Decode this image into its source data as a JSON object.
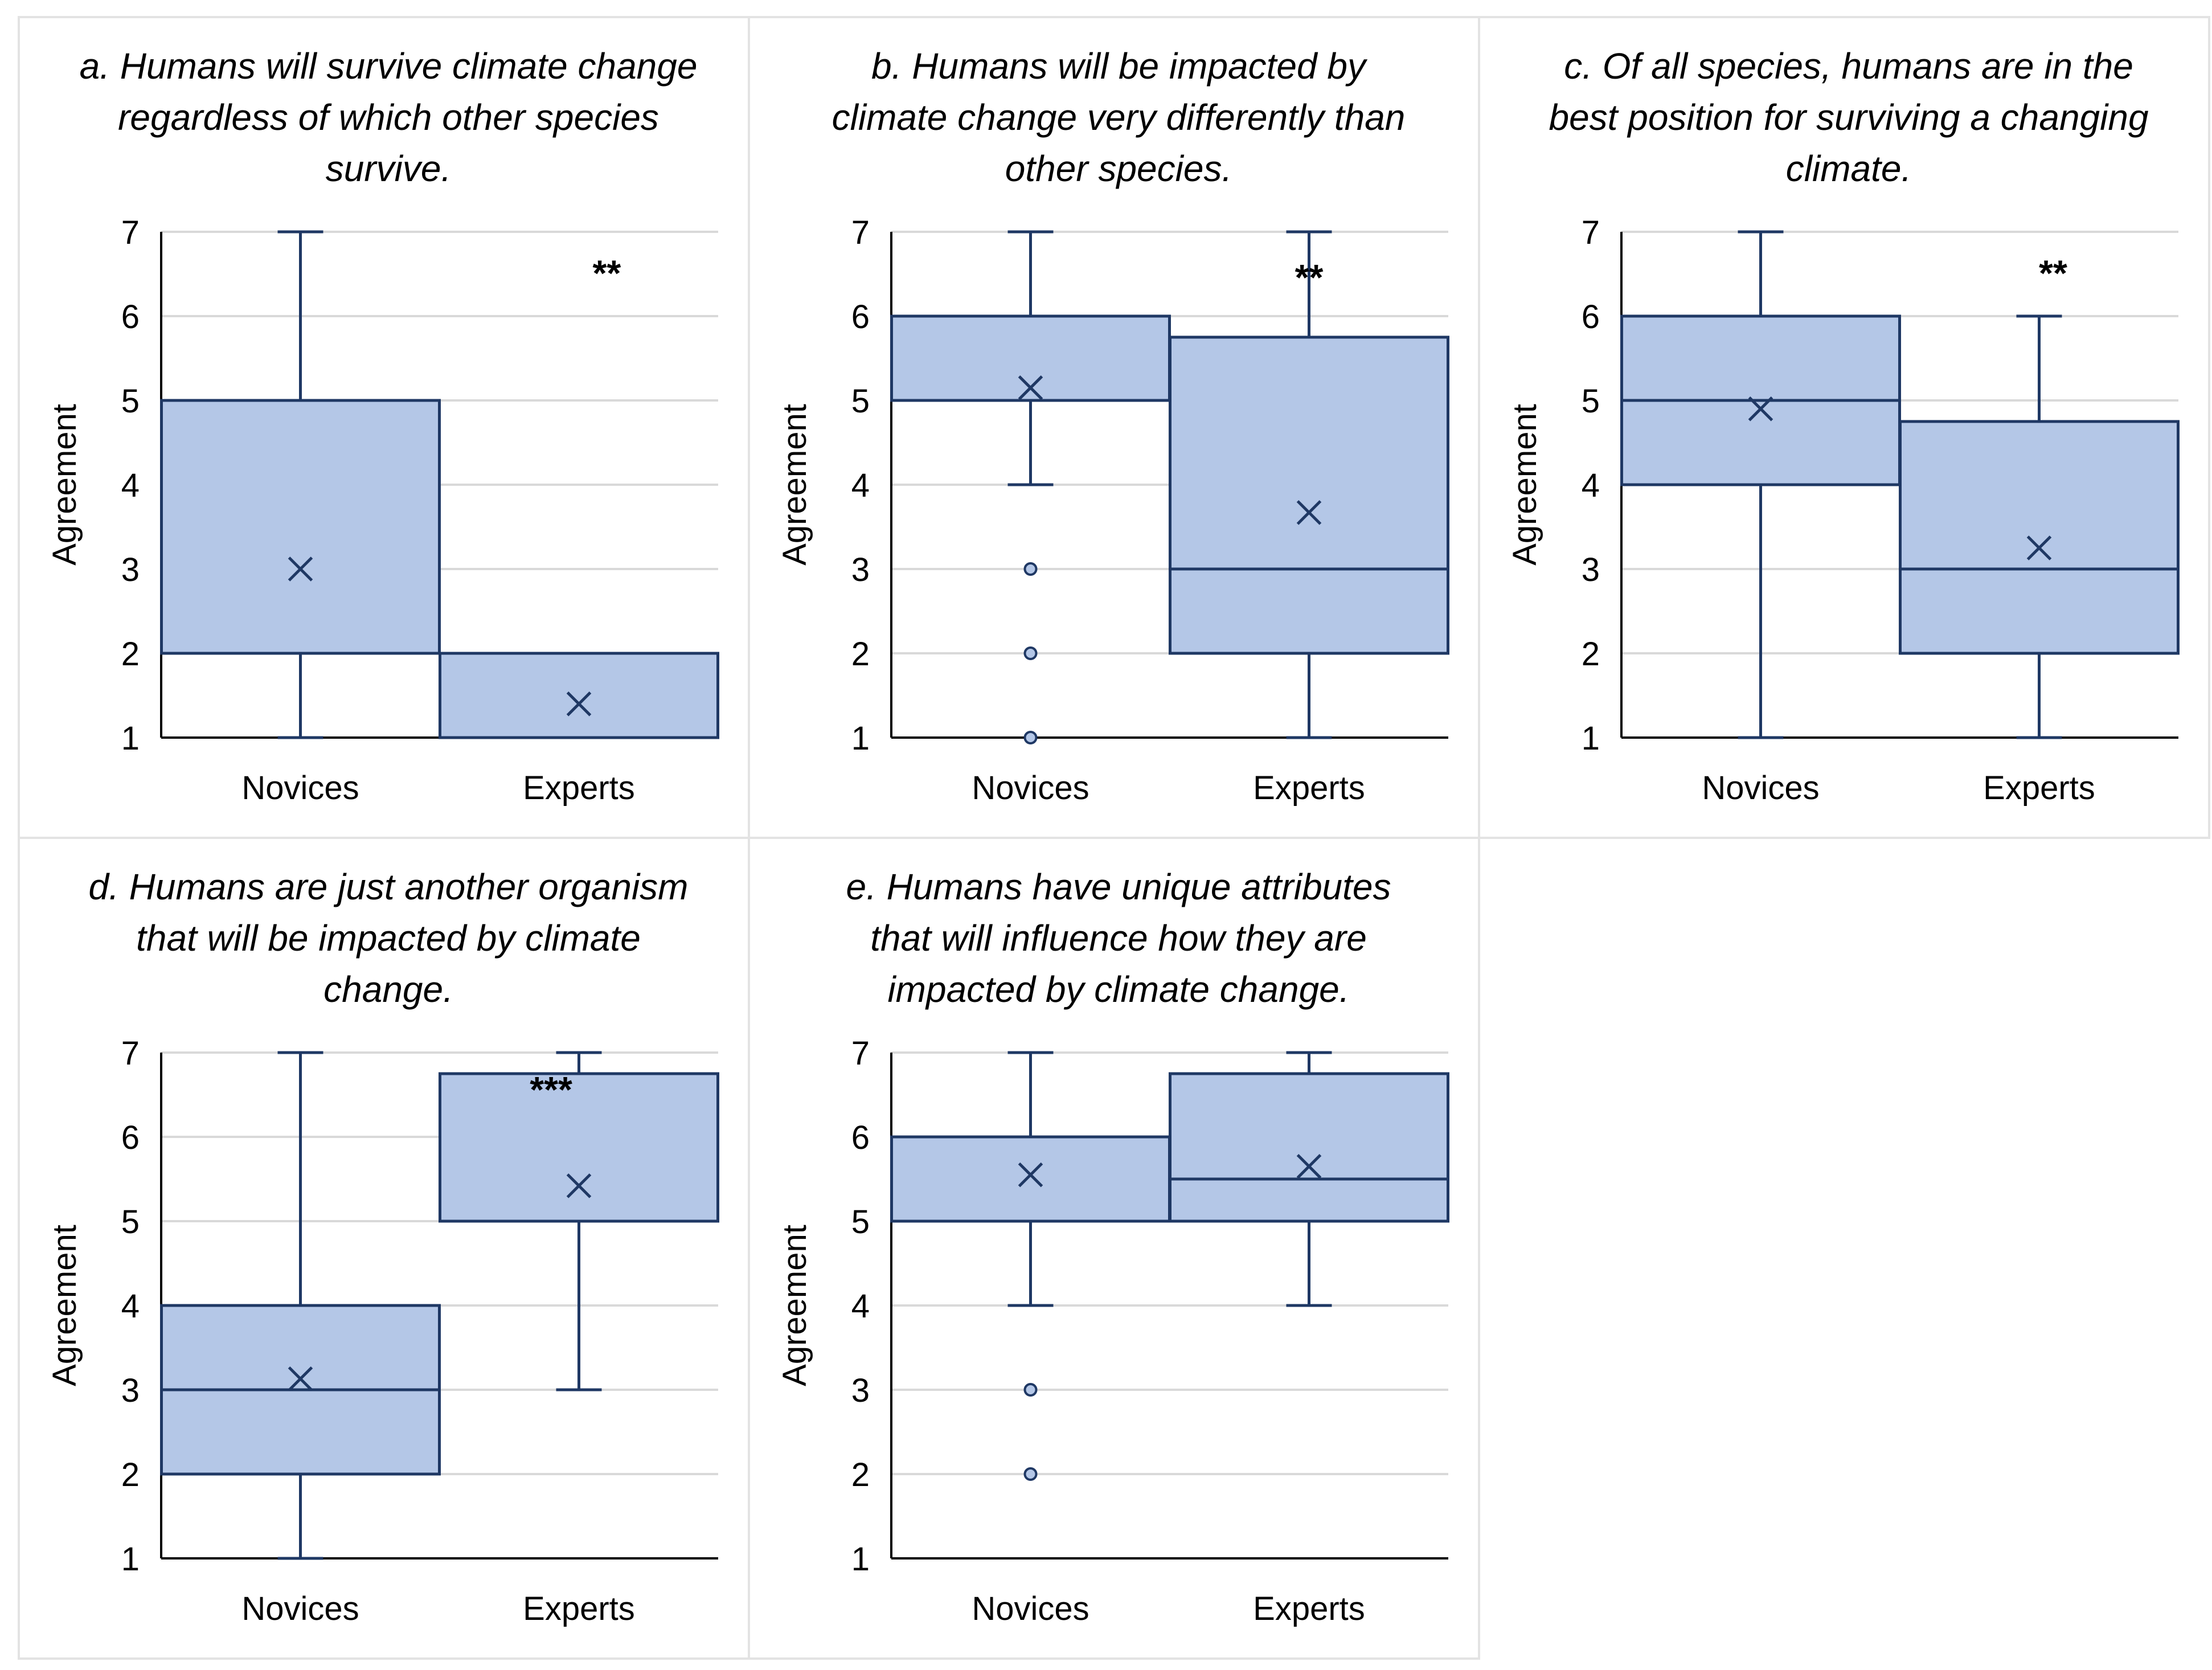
{
  "colors": {
    "box_fill": "#b4c7e7",
    "line": "#1f3864",
    "grid": "#d9d9d9",
    "panel_border": "#e3e3e3",
    "text": "#000000"
  },
  "chart_data": [
    {
      "type": "box",
      "title_lines": [
        "a. Humans will survive climate change",
        "regardless of which other species",
        "survive."
      ],
      "ylabel": "Agreement",
      "ylim": [
        1,
        7
      ],
      "yticks": [
        "1",
        "2",
        "3",
        "4",
        "5",
        "6",
        "7"
      ],
      "categories": [
        "Novices",
        "Experts"
      ],
      "significance": "**",
      "significance_position": [
        1.6,
        6.55
      ],
      "boxes": [
        {
          "group": "Novices",
          "whisker_low": 1,
          "q1": 2,
          "median": 2,
          "q3": 5,
          "whisker_high": 7,
          "mean": 3.0,
          "outliers": [],
          "show_median": false
        },
        {
          "group": "Experts",
          "whisker_low": 1,
          "q1": 1,
          "median": 1,
          "q3": 2,
          "whisker_high": 2,
          "mean": 1.4,
          "outliers": [],
          "show_median": false
        }
      ]
    },
    {
      "type": "box",
      "title_lines": [
        "b. Humans will be impacted by",
        "climate change very differently than",
        "other species."
      ],
      "ylabel": "Agreement",
      "ylim": [
        1,
        7
      ],
      "yticks": [
        "1",
        "2",
        "3",
        "4",
        "5",
        "6",
        "7"
      ],
      "categories": [
        "Novices",
        "Experts"
      ],
      "significance": "**",
      "significance_position": [
        1.5,
        6.5
      ],
      "boxes": [
        {
          "group": "Novices",
          "whisker_low": 4,
          "q1": 5,
          "median": 5,
          "q3": 6,
          "whisker_high": 7,
          "mean": 5.15,
          "outliers": [
            3,
            2,
            1
          ],
          "show_median": false
        },
        {
          "group": "Experts",
          "whisker_low": 1,
          "q1": 2,
          "median": 3,
          "q3": 5.75,
          "whisker_high": 7,
          "mean": 3.67,
          "outliers": [],
          "show_median": true
        }
      ]
    },
    {
      "type": "box",
      "title_lines": [
        "c. Of all species, humans are in the",
        "best position for surviving a changing",
        "climate."
      ],
      "ylabel": "Agreement",
      "ylim": [
        1,
        7
      ],
      "yticks": [
        "1",
        "2",
        "3",
        "4",
        "5",
        "6",
        "7"
      ],
      "categories": [
        "Novices",
        "Experts"
      ],
      "significance": "**",
      "significance_position": [
        1.55,
        6.55
      ],
      "boxes": [
        {
          "group": "Novices",
          "whisker_low": 1,
          "q1": 4,
          "median": 5,
          "q3": 6,
          "whisker_high": 7,
          "mean": 4.9,
          "outliers": [],
          "show_median": true
        },
        {
          "group": "Experts",
          "whisker_low": 1,
          "q1": 2,
          "median": 3,
          "q3": 4.75,
          "whisker_high": 6,
          "mean": 3.25,
          "outliers": [],
          "show_median": true
        }
      ]
    },
    {
      "type": "box",
      "title_lines": [
        "d. Humans are just another organism",
        "that will be impacted by climate",
        "change."
      ],
      "ylabel": "Agreement",
      "ylim": [
        1,
        7
      ],
      "yticks": [
        "1",
        "2",
        "3",
        "4",
        "5",
        "6",
        "7"
      ],
      "categories": [
        "Novices",
        "Experts"
      ],
      "significance": "***",
      "significance_position": [
        1.4,
        6.6
      ],
      "boxes": [
        {
          "group": "Novices",
          "whisker_low": 1,
          "q1": 2,
          "median": 3,
          "q3": 4,
          "whisker_high": 7,
          "mean": 3.13,
          "outliers": [],
          "show_median": true
        },
        {
          "group": "Experts",
          "whisker_low": 3,
          "q1": 5,
          "median": 5,
          "q3": 6.75,
          "whisker_high": 7,
          "mean": 5.42,
          "outliers": [],
          "show_median": false
        }
      ]
    },
    {
      "type": "box",
      "title_lines": [
        "e. Humans have unique attributes",
        "that will influence how they are",
        "impacted by climate change."
      ],
      "ylabel": "Agreement",
      "ylim": [
        1,
        7
      ],
      "yticks": [
        "1",
        "2",
        "3",
        "4",
        "5",
        "6",
        "7"
      ],
      "categories": [
        "Novices",
        "Experts"
      ],
      "significance": "",
      "significance_position": [
        1.5,
        6.5
      ],
      "boxes": [
        {
          "group": "Novices",
          "whisker_low": 4,
          "q1": 5,
          "median": 5,
          "q3": 6,
          "whisker_high": 7,
          "mean": 5.55,
          "outliers": [
            3,
            2
          ],
          "show_median": false
        },
        {
          "group": "Experts",
          "whisker_low": 4,
          "q1": 5,
          "median": 5.5,
          "q3": 6.75,
          "whisker_high": 7,
          "mean": 5.65,
          "outliers": [],
          "show_median": true
        }
      ]
    }
  ]
}
